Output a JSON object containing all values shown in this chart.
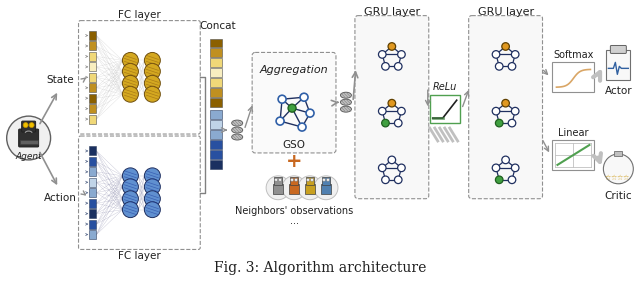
{
  "title": "Fig. 3: Algorithm architecture",
  "title_fontsize": 10,
  "bg_color": "#ffffff",
  "fig_width": 6.4,
  "fig_height": 2.81,
  "labels": {
    "state": "State",
    "action": "Action",
    "agent": "Agent",
    "fc_layer_top": "FC layer",
    "fc_layer_bot": "FC layer",
    "concat": "Concat",
    "aggregation": "Aggregation",
    "gso": "GSO",
    "neighbors": "Neighbors' observations",
    "gru1": "GRU layer",
    "gru2": "GRU layer",
    "relu": "ReLu",
    "softmax": "Softmax",
    "linear": "Linear",
    "actor": "Actor",
    "critic": "Critic",
    "dots": "..."
  },
  "colors": {
    "gold": "#D4A820",
    "dark_gold": "#8B6000",
    "mid_gold": "#C09020",
    "light_gold": "#F0D878",
    "pale_gold": "#F8EEC0",
    "blue_dark": "#1a3060",
    "blue_mid": "#2850A0",
    "blue_light": "#8AAAD0",
    "blue_pale": "#C0D4E8",
    "node_blue": "#3060A8",
    "node_blue_light": "#6090D0",
    "node_orange": "#E09820",
    "node_green": "#40A040",
    "node_pink": "#D0A0C0",
    "node_gray": "#A0A0B0",
    "edge_dark": "#203060",
    "edge_gray": "#808898",
    "orange_robot": "#C86820",
    "gold_robot": "#C8A020",
    "blue_robot": "#5080B0",
    "gray_robot": "#909090",
    "arrow_gray": "#909090",
    "box_border": "#909090",
    "relu_green": "#408040",
    "relu_black": "#202020",
    "linear_green": "#50A050",
    "softmax_orange": "#D09040"
  }
}
